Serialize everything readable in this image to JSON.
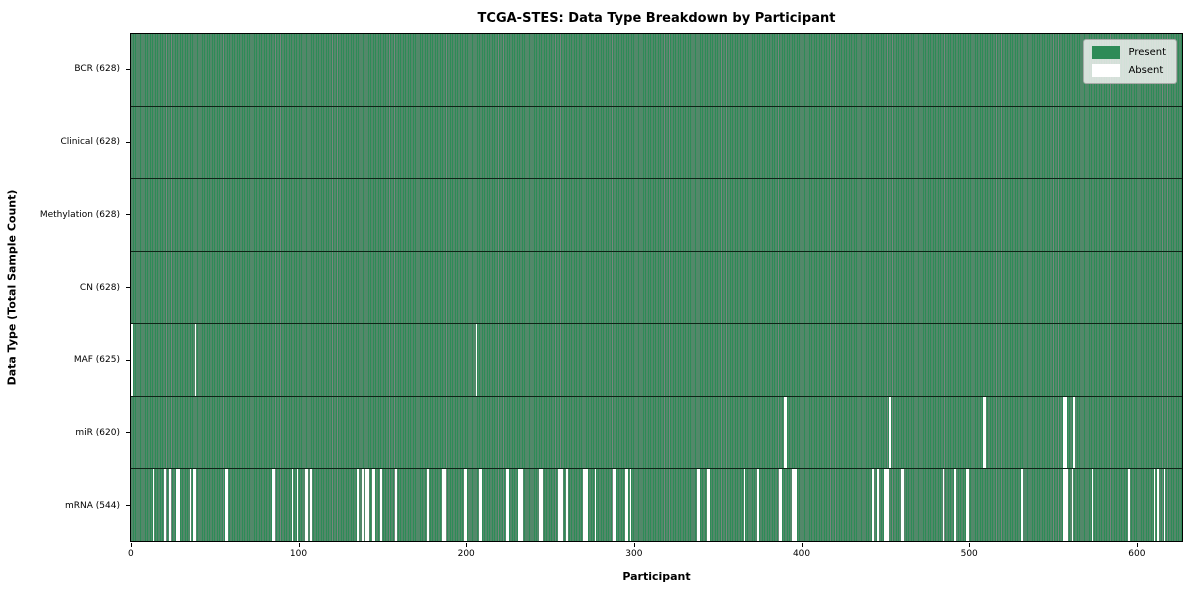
{
  "title": "TCGA-STES: Data Type Breakdown by Participant",
  "axes": {
    "xlabel": "Participant",
    "ylabel": "Data Type (Total Sample Count)"
  },
  "legend": {
    "position": "upper right",
    "entries": [
      {
        "label": "Present",
        "color": "#2e8b57"
      },
      {
        "label": "Absent",
        "color": "#ffffff"
      }
    ]
  },
  "colors": {
    "present_fill": "#2e8b57",
    "bar_edge": "rgba(8, 34, 20, 0.55)",
    "absent_fill": "#ffffff",
    "row_separator": "#0e2417",
    "frame": "#000000"
  },
  "chart_data": {
    "type": "heatmap",
    "title": "TCGA-STES: Data Type Breakdown by Participant",
    "xlabel": "Participant",
    "ylabel": "Data Type (Total Sample Count)",
    "x_ticks": [
      0,
      100,
      200,
      300,
      400,
      500,
      600
    ],
    "xlim": [
      -0.5,
      627.5
    ],
    "n_participants": 628,
    "grid": false,
    "rows": [
      {
        "data_type": "BCR",
        "label": "BCR (628)",
        "present_count": 628,
        "absent_count": 0,
        "absent_segments": []
      },
      {
        "data_type": "Clinical",
        "label": "Clinical (628)",
        "present_count": 628,
        "absent_count": 0,
        "absent_segments": []
      },
      {
        "data_type": "Methylation",
        "label": "Methylation (628)",
        "present_count": 628,
        "absent_count": 0,
        "absent_segments": []
      },
      {
        "data_type": "CN",
        "label": "CN (628)",
        "present_count": 628,
        "absent_count": 0,
        "absent_segments": []
      },
      {
        "data_type": "MAF",
        "label": "MAF (625)",
        "present_count": 625,
        "absent_count": 3,
        "absent_segments": [
          [
            0,
            1
          ],
          [
            38,
            1
          ],
          [
            206,
            1
          ]
        ]
      },
      {
        "data_type": "miR",
        "label": "miR (620)",
        "present_count": 620,
        "absent_count": 8,
        "absent_segments": [
          [
            390,
            2
          ],
          [
            453,
            1
          ],
          [
            509,
            2
          ],
          [
            557,
            2
          ],
          [
            563,
            1
          ]
        ]
      },
      {
        "data_type": "mRNA",
        "label": "mRNA (544)",
        "present_count": 544,
        "absent_count": 84,
        "absent_segments": [
          [
            13,
            1
          ],
          [
            20,
            1
          ],
          [
            23,
            1
          ],
          [
            27,
            2
          ],
          [
            35,
            1
          ],
          [
            37,
            2
          ],
          [
            56,
            2
          ],
          [
            84,
            2
          ],
          [
            96,
            1
          ],
          [
            99,
            1
          ],
          [
            104,
            2
          ],
          [
            107,
            1
          ],
          [
            135,
            1
          ],
          [
            138,
            1
          ],
          [
            140,
            2
          ],
          [
            144,
            2
          ],
          [
            149,
            1
          ],
          [
            158,
            1
          ],
          [
            177,
            1
          ],
          [
            186,
            2
          ],
          [
            199,
            2
          ],
          [
            208,
            2
          ],
          [
            224,
            2
          ],
          [
            231,
            3
          ],
          [
            244,
            2
          ],
          [
            255,
            3
          ],
          [
            260,
            1
          ],
          [
            270,
            3
          ],
          [
            277,
            1
          ],
          [
            288,
            2
          ],
          [
            295,
            2
          ],
          [
            298,
            1
          ],
          [
            338,
            2
          ],
          [
            344,
            2
          ],
          [
            366,
            1
          ],
          [
            374,
            1
          ],
          [
            387,
            2
          ],
          [
            395,
            3
          ],
          [
            443,
            1
          ],
          [
            446,
            1
          ],
          [
            450,
            3
          ],
          [
            460,
            2
          ],
          [
            485,
            1
          ],
          [
            492,
            1
          ],
          [
            499,
            2
          ],
          [
            532,
            1
          ],
          [
            557,
            3
          ],
          [
            562,
            1
          ],
          [
            574,
            1
          ],
          [
            596,
            1
          ],
          [
            611,
            1
          ],
          [
            613,
            1
          ],
          [
            617,
            1
          ]
        ]
      }
    ]
  }
}
